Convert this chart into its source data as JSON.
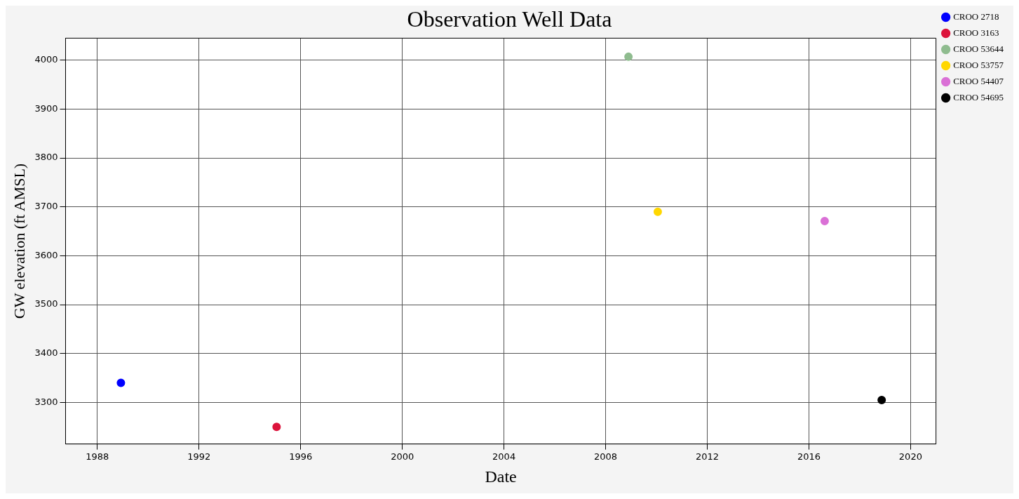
{
  "chart_data": {
    "type": "scatter",
    "title": "Observation Well Data",
    "xlabel": "Date",
    "ylabel": "GW elevation (ft AMSL)",
    "series": [
      {
        "name": "CROO 2718",
        "color": "#0000ff",
        "x": [
          "1988-12-05"
        ],
        "values": [
          3340
        ]
      },
      {
        "name": "CROO 3163",
        "color": "#dc143c",
        "x": [
          "1995-01-20"
        ],
        "values": [
          3250
        ]
      },
      {
        "name": "CROO 53644",
        "color": "#8fbc8f",
        "x": [
          "2008-11-25"
        ],
        "values": [
          4007
        ]
      },
      {
        "name": "CROO 53757",
        "color": "#ffd700",
        "x": [
          "2010-01-20"
        ],
        "values": [
          3690
        ]
      },
      {
        "name": "CROO 54407",
        "color": "#da70d6",
        "x": [
          "2016-08-15"
        ],
        "values": [
          3671
        ]
      },
      {
        "name": "CROO 54695",
        "color": "#000000",
        "x": [
          "2018-11-12"
        ],
        "values": [
          3305
        ]
      }
    ],
    "xlim": [
      "1986-10",
      "2021-01"
    ],
    "xticks": [
      "1988",
      "1992",
      "1996",
      "2000",
      "2004",
      "2008",
      "2012",
      "2016",
      "2020"
    ],
    "ylim": [
      3215,
      4045
    ],
    "yticks": [
      3300,
      3400,
      3500,
      3600,
      3700,
      3800,
      3900,
      4000
    ],
    "grid": true,
    "legend": "top right",
    "marker": "circle"
  }
}
